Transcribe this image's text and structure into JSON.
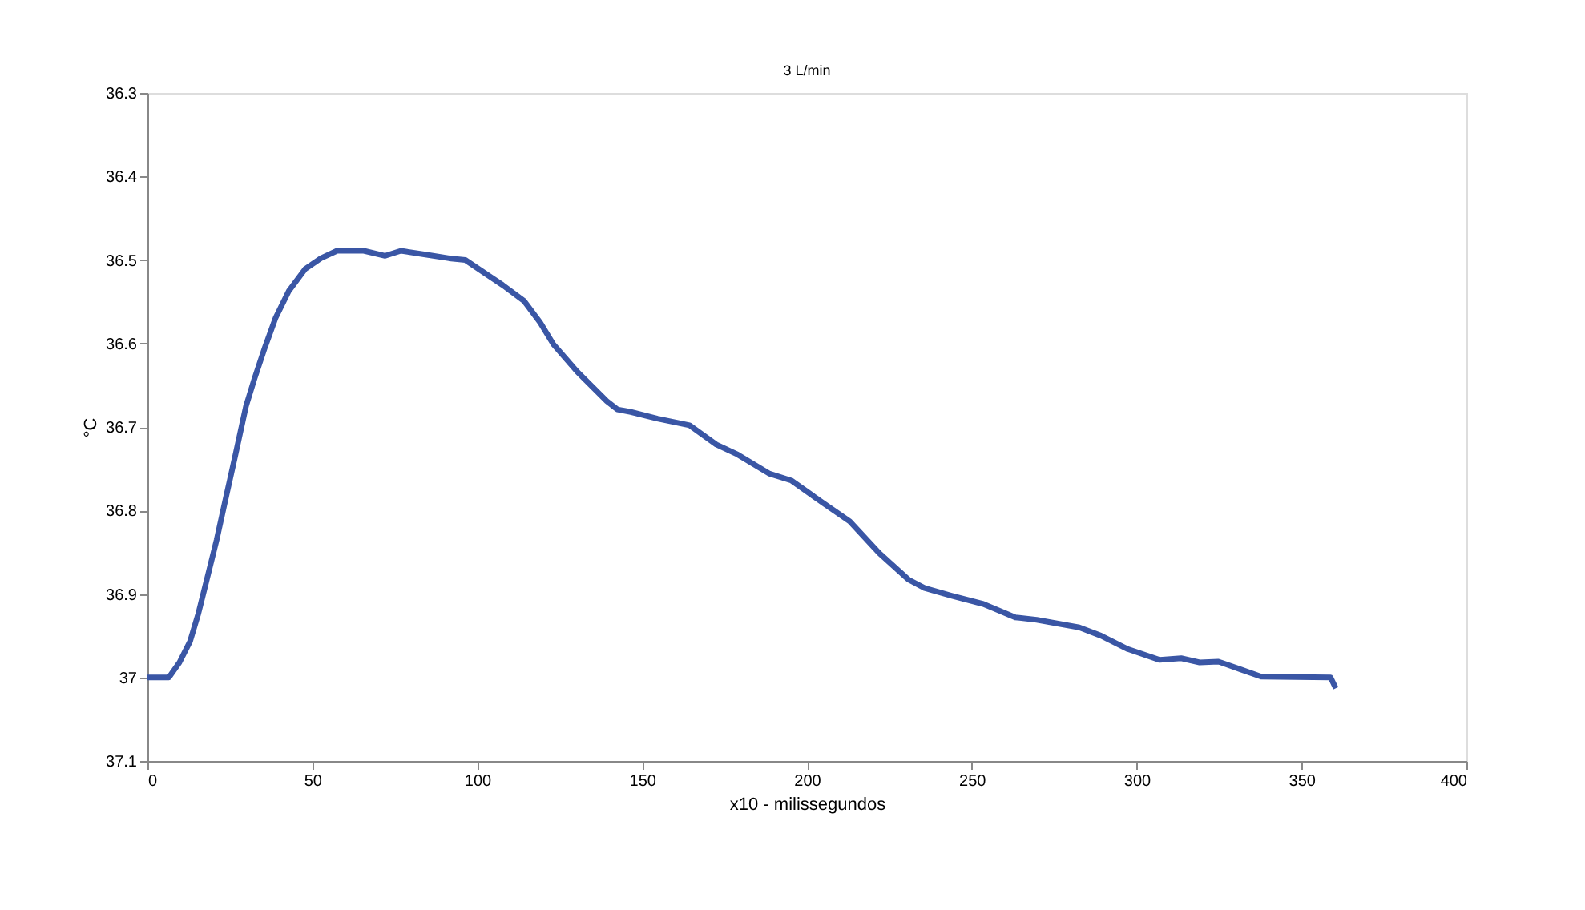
{
  "chart_data": {
    "type": "line",
    "title": "3 L/min",
    "xlabel": "x10 - milissegundos",
    "ylabel": "°C",
    "xlim": [
      0,
      400
    ],
    "xticks": [
      0,
      50,
      100,
      150,
      200,
      250,
      300,
      350,
      400
    ],
    "ylim": [
      37.1,
      36.3
    ],
    "yticks": [
      36.3,
      36.4,
      36.5,
      36.6,
      36.7,
      36.8,
      36.9,
      37,
      37.1
    ],
    "grid": false,
    "marker": "none",
    "line_style": "solid",
    "series": [
      {
        "color": "#3a56a5",
        "x": [
          0,
          6.5,
          9.7,
          12.9,
          15.4,
          17.8,
          21,
          23.5,
          26.7,
          29.9,
          32.4,
          35.6,
          38.9,
          42.9,
          47.8,
          52.6,
          57.5,
          65.6,
          72.1,
          76.9,
          85.1,
          91.5,
          96.4,
          102.8,
          107.7,
          114.2,
          119.1,
          123.1,
          130.4,
          139.3,
          142.5,
          146.6,
          154.7,
          164.4,
          172.5,
          179,
          188.7,
          195.2,
          204.9,
          213,
          221.9,
          230.9,
          235.7,
          243.8,
          253.5,
          263.2,
          269.7,
          282.6,
          289.2,
          297.3,
          307,
          313.5,
          319.1,
          324.8,
          331.3,
          337.8,
          358.8,
          360.4
        ],
        "values": [
          37.0,
          37.0,
          36.982,
          36.957,
          36.924,
          36.886,
          36.835,
          36.79,
          36.733,
          36.675,
          36.643,
          36.605,
          36.569,
          36.537,
          36.511,
          36.498,
          36.489,
          36.489,
          36.495,
          36.489,
          36.494,
          36.498,
          36.5,
          36.517,
          36.53,
          36.549,
          36.575,
          36.601,
          36.634,
          36.669,
          36.679,
          36.682,
          36.69,
          36.698,
          36.721,
          36.733,
          36.756,
          36.764,
          36.791,
          36.813,
          36.851,
          36.883,
          36.893,
          36.902,
          36.912,
          36.928,
          36.931,
          36.94,
          36.95,
          36.966,
          36.979,
          36.977,
          36.982,
          36.981,
          36.99,
          36.999,
          37.0,
          37.013
        ]
      }
    ]
  }
}
